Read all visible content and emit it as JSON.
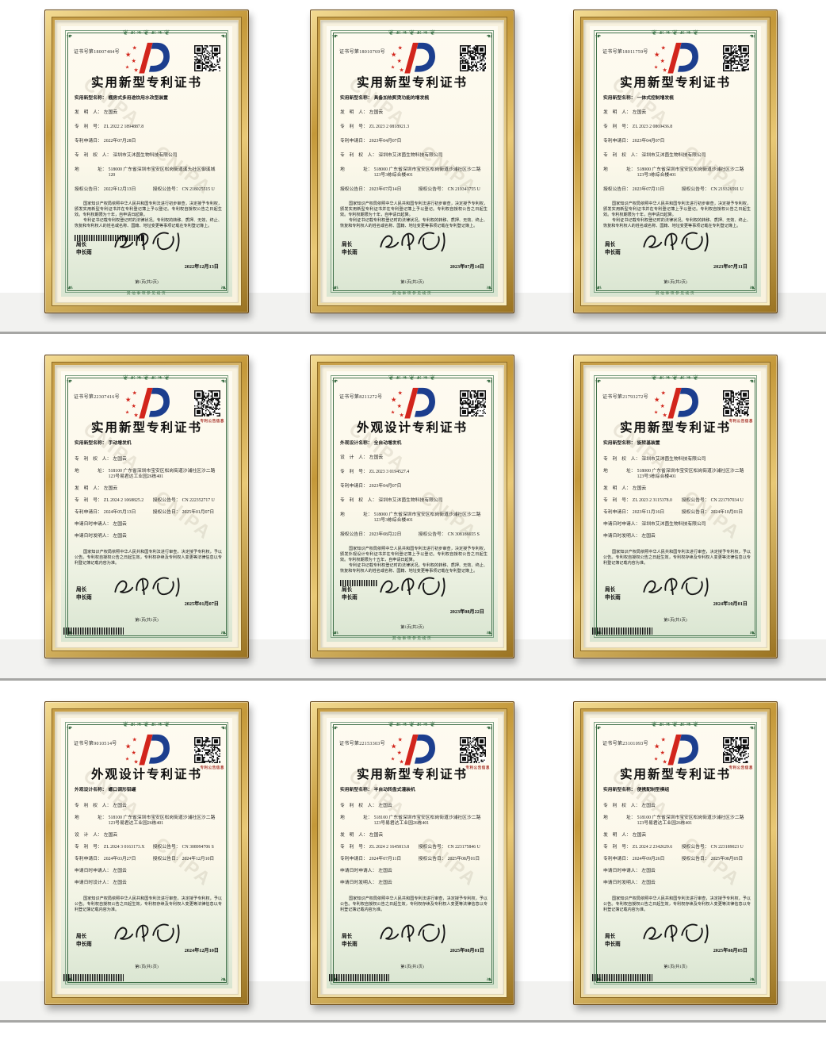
{
  "certificates": [
    {
      "cert_no": "证书号第18007484号",
      "title": "实用新型专利证书",
      "variant": "old",
      "qr_label": "",
      "rows": [
        {
          "l": "实用新型名称：",
          "v": "棚房式多用途饮用水改型装置"
        },
        {
          "l": "发　明　人：",
          "v": "左国云"
        },
        {
          "l": "专　利　号：",
          "v": "ZL 2022 2 1894887.8"
        },
        {
          "l": "专利申请日：",
          "v": "2022年07月28日"
        },
        {
          "l": "专　利　权　人：",
          "v": "深圳市艾沐茵生物科技有限公司"
        },
        {
          "l": "地　　　　址：",
          "v": "518000 广东省深圳市宝安区松岗街道溪头社区御溪城120"
        },
        {
          "l": "授权公告日：",
          "v": "2022年12月13日",
          "l2": "授权公告号：",
          "v2": "CN 218025515 U"
        }
      ],
      "legal": [
        "国家知识产权局依照中华人民共和国专利法进行初步审查，决定授予专利权，颁发实用新型专利证书并在专利登记簿上予以登记。专利权自授权公告之日起生效。专利权期限为十年，自申请日起算。",
        "专利证书记载专利权登记时的法律状况。专利权的转移、质押、无效、终止、恢复和专利权人的姓名或名称、国籍、地址变更等事项记载在专利登记簿上。"
      ],
      "director_label": "局长",
      "director_name": "申长雨",
      "date": "2022年12月13日",
      "page_label": "第1页(共2页)",
      "footer_note": "其他事项参见续页",
      "barcode": "mid"
    },
    {
      "cert_no": "证书号第18010769号",
      "title": "实用新型专利证书",
      "variant": "old",
      "qr_label": "",
      "rows": [
        {
          "l": "实用新型名称：",
          "v": "具备加热熨烫功能的增发梳"
        },
        {
          "l": "发　明　人：",
          "v": "左国云"
        },
        {
          "l": "专　利　号：",
          "v": "ZL 2023 2 0818921.3"
        },
        {
          "l": "专利申请日：",
          "v": "2023年04月07日"
        },
        {
          "l": "专　利　权　人：",
          "v": "深圳市艾沐茵生物科技有限公司"
        },
        {
          "l": "地　　　　址：",
          "v": "518000 广东省深圳市宝安区松岗街道沙浦社区沙二路123号3栋综合楼401"
        },
        {
          "l": "授权公告日：",
          "v": "2023年07月14日",
          "l2": "授权公告号：",
          "v2": "CN 219341755 U"
        }
      ],
      "legal": [
        "国家知识产权局依照中华人民共和国专利法进行初步审查，决定授予专利权，颁发实用新型专利证书并在专利登记簿上予以登记。专利权自授权公告之日起生效。专利权期限为十年，自申请日起算。",
        "专利证书记载专利权登记时的法律状况。专利权的转移、质押、无效、终止、恢复和专利权人的姓名或名称、国籍、地址变更等事项记载在专利登记簿上。"
      ],
      "director_label": "局长",
      "director_name": "申长雨",
      "date": "2023年07月14日",
      "page_label": "第1页(共2页)",
      "footer_note": "其他事项参见续页",
      "barcode": "none"
    },
    {
      "cert_no": "证书号第18011759号",
      "title": "实用新型专利证书",
      "variant": "old",
      "qr_label": "",
      "rows": [
        {
          "l": "实用新型名称：",
          "v": "一体式控制增发梳"
        },
        {
          "l": "发　明　人：",
          "v": "左国云"
        },
        {
          "l": "专　利　号：",
          "v": "ZL 2023 2 0869436.8"
        },
        {
          "l": "专利申请日：",
          "v": "2023年04月07日"
        },
        {
          "l": "专　利　权　人：",
          "v": "深圳市艾沐茵生物科技有限公司"
        },
        {
          "l": "地　　　　址：",
          "v": "518000 广东省深圳市宝安区松岗街道沙浦社区沙二路123号3栋综合楼401"
        },
        {
          "l": "授权公告日：",
          "v": "2023年07月11日",
          "l2": "授权公告号：",
          "v2": "CN 219326591 U"
        }
      ],
      "legal": [
        "国家知识产权局依照中华人民共和国专利法进行初步审查，决定授予专利权，颁发实用新型专利证书并在专利登记簿上予以登记。专利权自授权公告之日起生效。专利权期限为十年，自申请日起算。",
        "专利证书记载专利权登记时的法律状况。专利权的转移、质押、无效、终止、恢复和专利权人的姓名或名称、国籍、地址变更等事项记载在专利登记簿上。"
      ],
      "director_label": "局长",
      "director_name": "申长雨",
      "date": "2023年07月11日",
      "page_label": "第1页(共2页)",
      "footer_note": "其他事项参见续页",
      "barcode": "none"
    },
    {
      "cert_no": "证书号第22307416号",
      "title": "实用新型专利证书",
      "variant": "new",
      "qr_label": "专利公告信息",
      "rows": [
        {
          "l": "实用新型名称：",
          "v": "手动增发机"
        },
        {
          "l": "专　利　权　人：",
          "v": "左国云"
        },
        {
          "l": "地　　　　址：",
          "v": "518100 广东省深圳市宝安区松岗街道沙浦社区沙二路123号易君达工业园26栋401"
        },
        {
          "l": "发　明　人：",
          "v": "左国云"
        },
        {
          "l": "专　利　号：",
          "v": "ZL 2024 2 1068825.2",
          "l2": "授权公告号：",
          "v2": "CN 222352717 U"
        },
        {
          "l": "专利申请日：",
          "v": "2024年05月13日",
          "l2": "授权公告日：",
          "v2": "2025年01月07日"
        },
        {
          "l": "申请日时申请人：",
          "v": "左国云"
        },
        {
          "l": "申请日时发明人：",
          "v": "左国云"
        }
      ],
      "legal": [
        "国家知识产权局依照中华人民共和国专利法进行审查，决定授予专利权，予以公告。专利权自授权公告之日起生效，专利权存续及专利权人变更等法律信息以专利登记簿记载内容为准。"
      ],
      "director_label": "局长",
      "director_name": "申长雨",
      "date": "2025年01月07日",
      "page_label": "第1页(共1页)",
      "footer_note": "",
      "barcode": "bottom"
    },
    {
      "cert_no": "证书号第8211272号",
      "title": "外观设计专利证书",
      "variant": "old",
      "qr_label": "",
      "rows": [
        {
          "l": "外观设计名称：",
          "v": "全自动增发机"
        },
        {
          "l": "设　计　人：",
          "v": "左国云"
        },
        {
          "l": "专　利　号：",
          "v": "ZL 2023 3 0194527.4"
        },
        {
          "l": "专利申请日：",
          "v": "2023年04月07日"
        },
        {
          "l": "专　利　权　人：",
          "v": "深圳市艾沐茵生物科技有限公司"
        },
        {
          "l": "地　　　　址：",
          "v": "518000 广东省深圳市宝安区松岗街道沙浦社区沙二路123号3栋综合楼401"
        },
        {
          "l": "授权公告日：",
          "v": "2023年08月22日",
          "l2": "授权公告号：",
          "v2": "CN 308186655 S"
        }
      ],
      "legal": [
        "国家知识产权局依照中华人民共和国专利法进行初步审查，决定授予专利权，颁发外观设计专利证书并在专利登记簿上予以登记。专利权自授权公告之日起生效。专利权期限为十五年，自申请日起算。",
        "专利证书记载专利权登记时的法律状况。专利权的转移、质押、无效、终止、恢复和专利权人的姓名或名称、国籍、地址变更等事项记载在专利登记簿上。"
      ],
      "director_label": "局长",
      "director_name": "申长雨",
      "date": "2023年08月22日",
      "page_label": "第1页(共2页)",
      "footer_note": "其他事项参见续页",
      "barcode": "mid-short"
    },
    {
      "cert_no": "证书号第21793272号",
      "title": "实用新型专利证书",
      "variant": "new",
      "qr_label": "专利公告信息",
      "rows": [
        {
          "l": "实用新型名称：",
          "v": "旋转基装置"
        },
        {
          "l": "专　利　权　人：",
          "v": "深圳市艾沐茵生物科技有限公司"
        },
        {
          "l": "地　　　　址：",
          "v": "518000 广东省深圳市宝安区松岗街道沙浦社区沙二路123号3栋综合楼401"
        },
        {
          "l": "发　明　人：",
          "v": "左国云"
        },
        {
          "l": "专　利　号：",
          "v": "ZL 2023 2 3115378.0",
          "l2": "授权公告号：",
          "v2": "CN 221797034 U"
        },
        {
          "l": "专利申请日：",
          "v": "2023年11月16日",
          "l2": "授权公告日：",
          "v2": "2024年10月01日"
        },
        {
          "l": "申请日时申请人：",
          "v": "深圳市艾沐茵生物科技有限公司"
        },
        {
          "l": "申请日时发明人：",
          "v": "左国云"
        }
      ],
      "legal": [
        "国家知识产权局依照中华人民共和国专利法进行审查，决定授予专利权，予以公告。专利权自授权公告之日起生效，专利权存续及专利权人变更等法律信息以专利登记簿记载内容为准。"
      ],
      "director_label": "局长",
      "director_name": "申长雨",
      "date": "2024年10月01日",
      "page_label": "第1页(共1页)",
      "footer_note": "",
      "barcode": "bottom"
    },
    {
      "cert_no": "证书号第9010514号",
      "title": "外观设计专利证书",
      "variant": "new",
      "qr_label": "专利公告信息",
      "rows": [
        {
          "l": "外观设计名称：",
          "v": "螺口调形铝罐"
        },
        {
          "l": "专　利　权　人：",
          "v": "左国云"
        },
        {
          "l": "地　　　　址：",
          "v": "518100 广东省深圳市宝安区松岗街道沙浦社区沙二路123号易君达工业园26栋401"
        },
        {
          "l": "设　计　人：",
          "v": "左国云"
        },
        {
          "l": "专　利　号：",
          "v": "ZL 2024 3 0163173.X",
          "l2": "授权公告号：",
          "v2": "CN 308994706 S"
        },
        {
          "l": "专利申请日：",
          "v": "2024年03月27日",
          "l2": "授权公告日：",
          "v2": "2024年12月10日"
        },
        {
          "l": "申请日时申请人：",
          "v": "左国云"
        },
        {
          "l": "申请日时设计人：",
          "v": "左国云"
        }
      ],
      "legal": [
        "国家知识产权局依照中华人民共和国专利法进行审查，决定授予专利权，予以公告。专利权自授权公告之日起生效，专利权存续及专利权人变更等法律信息以专利登记簿记载内容为准。"
      ],
      "director_label": "局长",
      "director_name": "申长雨",
      "date": "2024年12月10日",
      "page_label": "第1页(共1页)",
      "footer_note": "",
      "barcode": "bottom"
    },
    {
      "cert_no": "证书号第22153303号",
      "title": "实用新型专利证书",
      "variant": "new",
      "qr_label": "专利公告信息",
      "rows": [
        {
          "l": "实用新型名称：",
          "v": "半自动转盘式灌装机"
        },
        {
          "l": "专　利　权　人：",
          "v": "左国云"
        },
        {
          "l": "地　　　　址：",
          "v": "518100 广东省深圳市宝安区松岗街道沙浦社区沙二路123号易君达工业园26栋401"
        },
        {
          "l": "发　明　人：",
          "v": "左国云"
        },
        {
          "l": "专　利　号：",
          "v": "ZL 2024 2 1645813.8",
          "l2": "授权公告号：",
          "v2": "CN 223175846 U"
        },
        {
          "l": "专利申请日：",
          "v": "2024年07月11日",
          "l2": "授权公告日：",
          "v2": "2025年08月01日"
        },
        {
          "l": "申请日时申请人：",
          "v": "左国云"
        },
        {
          "l": "申请日时发明人：",
          "v": "左国云"
        }
      ],
      "legal": [
        "国家知识产权局依照中华人民共和国专利法进行审查，决定授予专利权，予以公告。专利权自授权公告之日起生效，专利权存续及专利权人变更等法律信息以专利登记簿记载内容为准。"
      ],
      "director_label": "局长",
      "director_name": "申长雨",
      "date": "2025年08月01日",
      "page_label": "第1页(共1页)",
      "footer_note": "",
      "barcode": "bottom"
    },
    {
      "cert_no": "证书号第23101093号",
      "title": "实用新型专利证书",
      "variant": "new",
      "qr_label": "专利公告信息",
      "rows": [
        {
          "l": "实用新型名称：",
          "v": "便携配制型模组"
        },
        {
          "l": "专　利　权　人：",
          "v": "左国云"
        },
        {
          "l": "地　　　　址：",
          "v": "518100 广东省深圳市宝安区松岗街道沙浦社区沙二路123号易君达工业园26栋401"
        },
        {
          "l": "发　明　人：",
          "v": "左国云"
        },
        {
          "l": "专　利　号：",
          "v": "ZL 2024 2 2342629.6",
          "l2": "授权公告号：",
          "v2": "CN 223189023 U"
        },
        {
          "l": "专利申请日：",
          "v": "2024年09月26日",
          "l2": "授权公告日：",
          "v2": "2025年08月05日"
        },
        {
          "l": "申请日时申请人：",
          "v": "左国云"
        },
        {
          "l": "申请日时发明人：",
          "v": "左国云"
        }
      ],
      "legal": [
        "国家知识产权局依照中华人民共和国专利法进行审查，决定授予专利权，予以公告。专利权自授权公告之日起生效，专利权存续及专利权人变更等法律信息以专利登记簿记载内容为准。"
      ],
      "director_label": "局长",
      "director_name": "申长雨",
      "date": "2025年08月05日",
      "page_label": "第1页(共1页)",
      "footer_note": "",
      "barcode": "bottom"
    }
  ]
}
